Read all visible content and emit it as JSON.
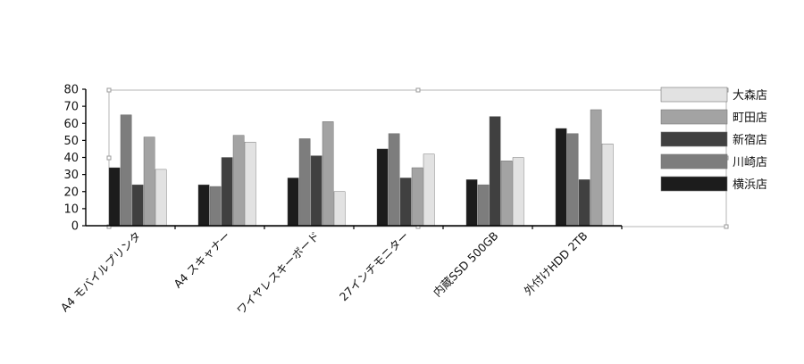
{
  "chart_data": {
    "type": "bar",
    "title": "",
    "xlabel": "",
    "ylabel": "",
    "ylim": [
      0,
      80
    ],
    "yticks": [
      0,
      10,
      20,
      30,
      40,
      50,
      60,
      70,
      80
    ],
    "grid": false,
    "legend_position": "right",
    "categories": [
      "A4 モバイルプリンタ",
      "A4 スキャナー",
      "ワイヤレスキーボード",
      "27インチモニター",
      "内蔵SSD 500GB",
      "外付けHDD 2TB"
    ],
    "series": [
      {
        "name": "横浜店",
        "color": "#1c1c1c",
        "values": [
          34,
          24,
          28,
          45,
          27,
          57
        ]
      },
      {
        "name": "川崎店",
        "color": "#7d7d7d",
        "values": [
          65,
          23,
          51,
          54,
          24,
          54
        ]
      },
      {
        "name": "新宿店",
        "color": "#404040",
        "values": [
          24,
          40,
          41,
          28,
          64,
          27
        ]
      },
      {
        "name": "町田店",
        "color": "#a3a3a3",
        "values": [
          52,
          53,
          61,
          34,
          38,
          68
        ]
      },
      {
        "name": "大森店",
        "color": "#e2e2e2",
        "values": [
          33,
          49,
          20,
          42,
          40,
          48
        ]
      }
    ],
    "legend_order": [
      "大森店",
      "町田店",
      "新宿店",
      "川崎店",
      "横浜店"
    ]
  }
}
